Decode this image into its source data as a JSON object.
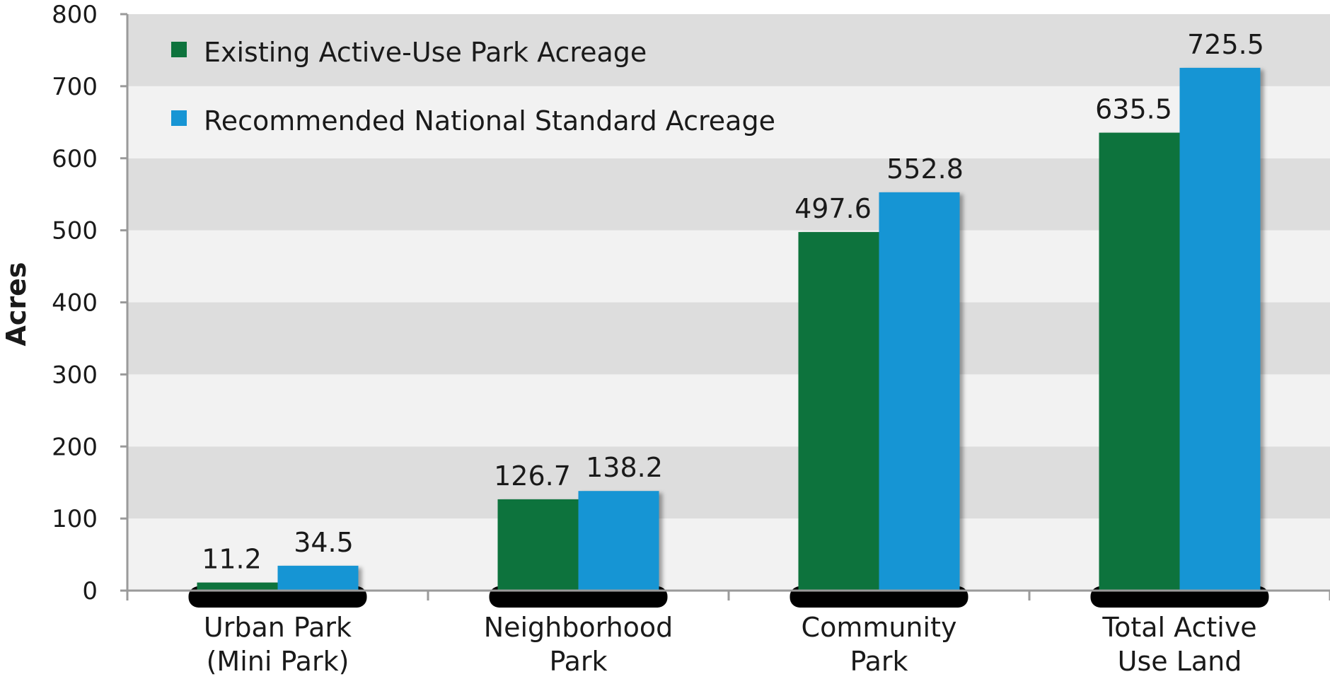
{
  "chart_data": {
    "type": "bar",
    "title": "",
    "xlabel": "",
    "ylabel": "Acres",
    "ylim": [
      0,
      800
    ],
    "yticks": [
      0,
      100,
      200,
      300,
      400,
      500,
      600,
      700,
      800
    ],
    "categories": [
      [
        "Urban Park",
        "(Mini Park)"
      ],
      [
        "Neighborhood",
        "Park"
      ],
      [
        "Community",
        "Park"
      ],
      [
        "Total Active",
        "Use Land"
      ]
    ],
    "series": [
      {
        "name": "Existing Active-Use Park Acreage",
        "color": "#0e733d",
        "values": [
          11.2,
          126.7,
          497.6,
          635.5
        ],
        "labels": [
          "11.2",
          "126.7",
          "497.6",
          "635.5"
        ]
      },
      {
        "name": "Recommended National Standard Acreage",
        "color": "#1795d4",
        "values": [
          34.5,
          138.2,
          552.8,
          725.5
        ],
        "labels": [
          "34.5",
          "138.2",
          "552.8",
          "725.5"
        ]
      }
    ],
    "legend": "top-left",
    "grid": "alternating horizontal bands"
  }
}
